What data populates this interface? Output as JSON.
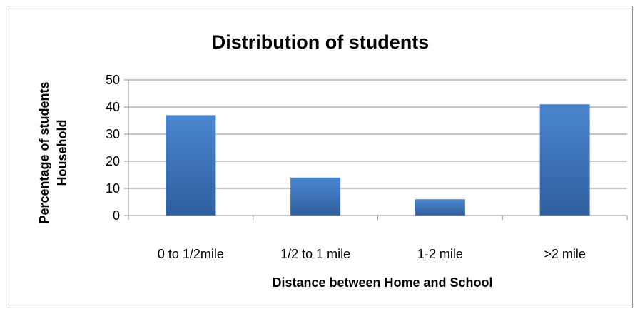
{
  "chart_data": {
    "type": "bar",
    "title": "Distribution of students",
    "xlabel": "Distance between Home and School",
    "ylabel_lines": [
      "Percentage of students",
      "Household"
    ],
    "categories": [
      "0 to 1/2mile",
      "1/2 to 1 mile",
      "1-2 mile",
      ">2 mile"
    ],
    "values": [
      37,
      14,
      6,
      41
    ],
    "ylim": [
      0,
      50
    ],
    "yticks": [
      0,
      10,
      20,
      30,
      40,
      50
    ],
    "grid": true,
    "legend": "none",
    "colors": {
      "bar_top": "#4a86d0",
      "bar_bottom": "#2f5f9e",
      "grid": "#8c8c8c",
      "axis": "#8c8c8c",
      "border": "#8c8c8c"
    }
  }
}
